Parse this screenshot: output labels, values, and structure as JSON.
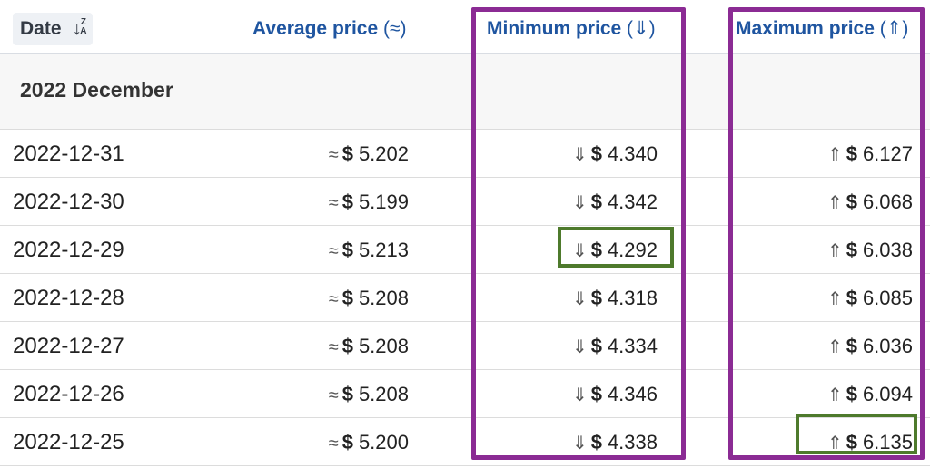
{
  "header": {
    "date_label": "Date",
    "date_sort_icon": "sort-za-icon",
    "average_label": "Average price",
    "average_symbol": "(≈)",
    "minimum_label": "Minimum price",
    "minimum_symbol": "(⇓)",
    "maximum_label": "Maximum price",
    "maximum_symbol": "(⇑)"
  },
  "group": {
    "label": "2022 December"
  },
  "prefix": {
    "avg": "≈",
    "min": "⇓",
    "max": "⇑",
    "currency": "$"
  },
  "rows": [
    {
      "date": "2022-12-31",
      "avg": "5.202",
      "min": "4.340",
      "max": "6.127"
    },
    {
      "date": "2022-12-30",
      "avg": "5.199",
      "min": "4.342",
      "max": "6.068"
    },
    {
      "date": "2022-12-29",
      "avg": "5.213",
      "min": "4.292",
      "max": "6.038"
    },
    {
      "date": "2022-12-28",
      "avg": "5.208",
      "min": "4.318",
      "max": "6.085"
    },
    {
      "date": "2022-12-27",
      "avg": "5.208",
      "min": "4.334",
      "max": "6.036"
    },
    {
      "date": "2022-12-26",
      "avg": "5.208",
      "min": "4.346",
      "max": "6.094"
    },
    {
      "date": "2022-12-25",
      "avg": "5.200",
      "min": "4.338",
      "max": "6.135"
    }
  ],
  "colors": {
    "header_text": "#1f55a0",
    "highlight_purple": "#8b2b94",
    "highlight_green": "#4e7a2c"
  }
}
